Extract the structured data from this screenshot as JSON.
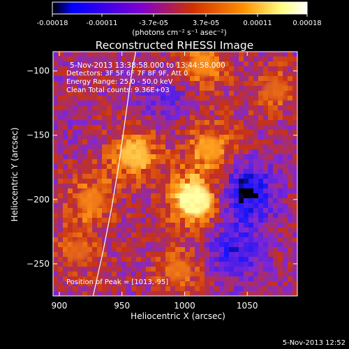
{
  "colorbar": {
    "tick_labels": [
      "-0.00018",
      "-0.00011",
      "-3.7e-05",
      "3.7e-05",
      "0.00011",
      "0.00018"
    ],
    "tick_values": [
      -0.00018,
      -0.00011,
      -3.7e-05,
      3.7e-05,
      0.00011,
      0.00018
    ],
    "range": [
      -0.00018,
      0.00018
    ],
    "units": "(photons cm⁻² s⁻¹ asec⁻²)",
    "colormap": [
      "#000000",
      "#0000ff",
      "#8000d0",
      "#d03000",
      "#ff9000",
      "#ffff80",
      "#ffffff"
    ]
  },
  "chart_data": {
    "type": "heatmap",
    "title": "Reconstructed RHESSI Image",
    "xlabel": "Heliocentric X (arcsec)",
    "ylabel": "Heliocentric Y (arcsec)",
    "xlim": [
      895,
      1090
    ],
    "ylim": [
      -275,
      -85
    ],
    "x_ticks": [
      900,
      950,
      1000,
      1050
    ],
    "y_ticks": [
      -100,
      -150,
      -200,
      -250
    ],
    "annotations": {
      "time_range": "5-Nov-2013 13:38:58.000 to 13:44:58.000",
      "detectors": "Detectors: 3F 5F 6F 7F 8F 9F, Att 0",
      "energy": "Energy Range: 25.0 - 50.0 keV",
      "clean": "Clean     Total counts: 9.36E+03",
      "peak": "Position of Peak = [1013,-95]"
    },
    "peak_position": [
      1013,
      -95
    ],
    "limb_points": [
      [
        927,
        -275
      ],
      [
        935,
        -240
      ],
      [
        942,
        -205
      ],
      [
        948,
        -170
      ],
      [
        953,
        -135
      ],
      [
        958,
        -100
      ],
      [
        961,
        -85
      ]
    ],
    "bright_sources": [
      {
        "x": 1008,
        "y": -200,
        "intensity": 0.00016
      },
      {
        "x": 960,
        "y": -165,
        "intensity": 0.00012
      },
      {
        "x": 1020,
        "y": -160,
        "intensity": 0.0001
      },
      {
        "x": 925,
        "y": -200,
        "intensity": 8e-05
      },
      {
        "x": 995,
        "y": -255,
        "intensity": 7e-05
      },
      {
        "x": 1072,
        "y": -115,
        "intensity": 6e-05
      },
      {
        "x": 915,
        "y": -240,
        "intensity": 6e-05
      },
      {
        "x": 1015,
        "y": -95,
        "intensity": 9e-05
      }
    ],
    "dark_regions": [
      {
        "x": 1050,
        "y": -195,
        "intensity": -0.00015
      },
      {
        "x": 1040,
        "y": -240,
        "intensity": -0.0001
      },
      {
        "x": 985,
        "y": -120,
        "intensity": -5e-05
      }
    ]
  },
  "footer": {
    "timestamp": "5-Nov-2013 12:52"
  }
}
